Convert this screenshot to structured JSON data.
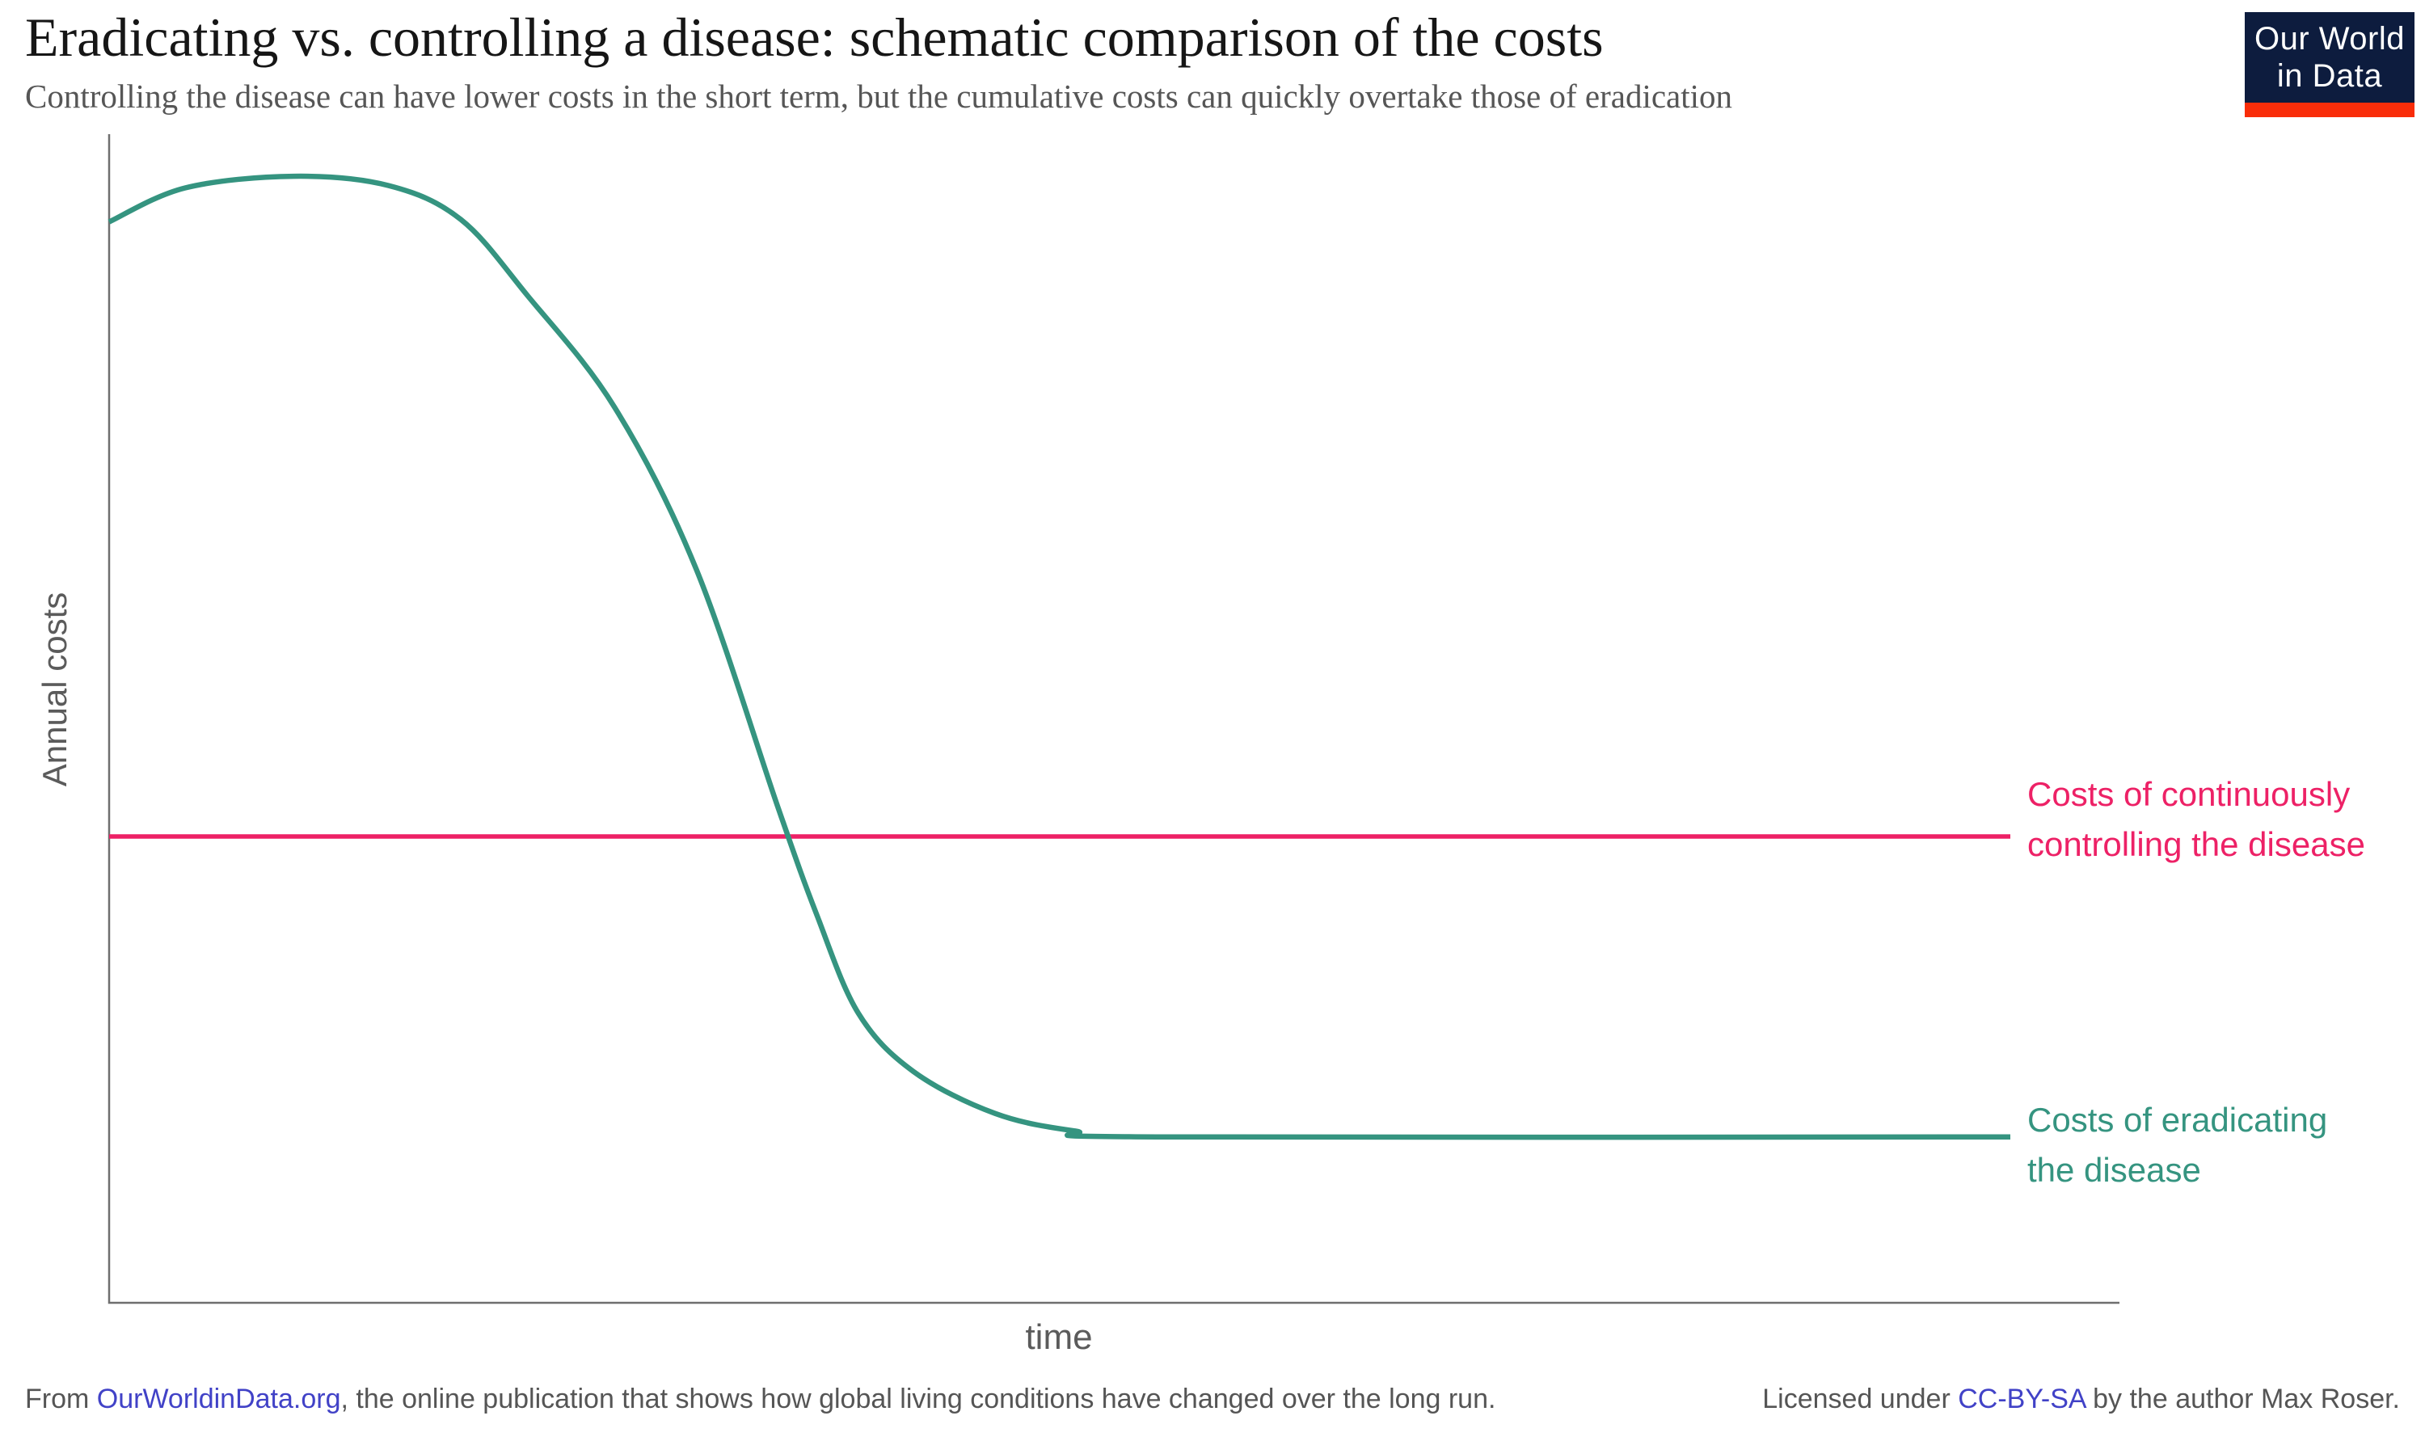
{
  "header": {
    "title": "Eradicating vs. controlling a disease: schematic comparison of the costs",
    "subtitle": "Controlling the disease can have lower costs in the short term, but the cumulative costs can quickly overtake those of eradication"
  },
  "logo": {
    "line1": "Our World",
    "line2": "in Data",
    "bg_color": "#0d1c3e",
    "bar_color": "#f92d09",
    "text_color": "#ffffff"
  },
  "chart_data": {
    "type": "line",
    "title": "Eradicating vs. controlling a disease: schematic comparison of the costs",
    "subtitle": "Controlling the disease can have lower costs in the short term, but the cumulative costs can quickly overtake those of eradication",
    "xlabel": "time",
    "ylabel": "Annual costs",
    "x_range": [
      0,
      1
    ],
    "y_range": [
      0,
      1
    ],
    "ticks": false,
    "grid": false,
    "legend_position": "right-of-line-ends",
    "series": [
      {
        "name": "Costs of eradicating the disease",
        "color": "#359480",
        "stroke_width": 6.5,
        "smooth": true,
        "points": [
          [
            0.0,
            0.925
          ],
          [
            0.04,
            0.954
          ],
          [
            0.097,
            0.964
          ],
          [
            0.147,
            0.956
          ],
          [
            0.185,
            0.927
          ],
          [
            0.22,
            0.862
          ],
          [
            0.266,
            0.766
          ],
          [
            0.309,
            0.627
          ],
          [
            0.352,
            0.423
          ],
          [
            0.372,
            0.333
          ],
          [
            0.394,
            0.248
          ],
          [
            0.423,
            0.198
          ],
          [
            0.466,
            0.162
          ],
          [
            0.508,
            0.147
          ],
          [
            0.551,
            0.142
          ],
          [
            1.0,
            0.142
          ]
        ]
      },
      {
        "name": "Costs of continuously controlling the disease",
        "color": "#ed2166",
        "stroke_width": 5.5,
        "smooth": false,
        "points": [
          [
            0.0,
            0.399
          ],
          [
            1.0,
            0.399
          ]
        ]
      }
    ]
  },
  "axes": {
    "y_label": "Annual costs",
    "x_label": "time",
    "axis_color": "#6f6f6f"
  },
  "labels": {
    "control": {
      "line1": "Costs of continuously",
      "line2": "controlling the disease",
      "color": "#ed2166"
    },
    "eradicate": {
      "line1": "Costs of eradicating",
      "line2": "the disease",
      "color": "#359480"
    }
  },
  "footer": {
    "left": {
      "prefix": "From ",
      "link": "OurWorldinData.org",
      "suffix": ", the online publication that shows how global living conditions have changed over the long run."
    },
    "right": {
      "prefix": "Licensed under ",
      "link": "CC-BY-SA",
      "suffix": " by the author Max Roser."
    },
    "link_color": "#4142c7",
    "text_color": "#555555"
  }
}
